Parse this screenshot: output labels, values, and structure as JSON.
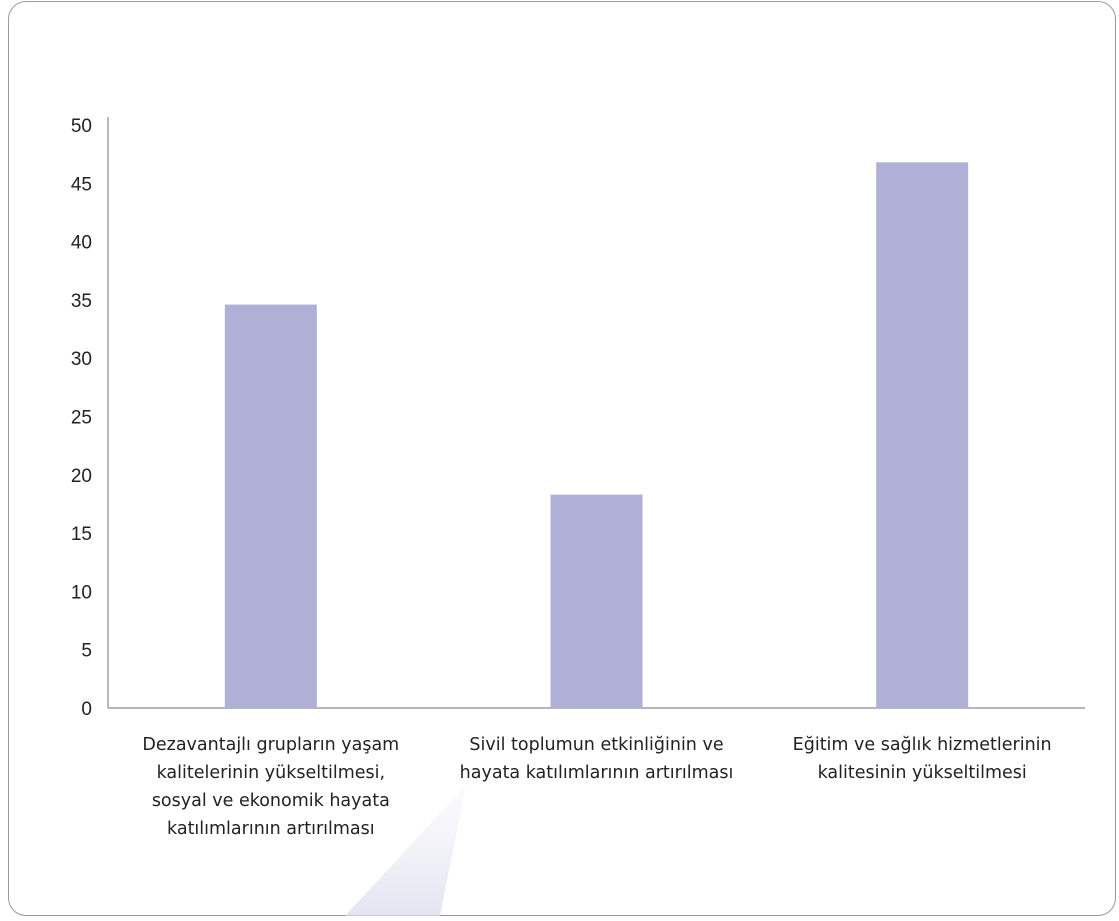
{
  "chart_data": {
    "type": "bar",
    "title": "",
    "xlabel": "",
    "ylabel": "",
    "ylim": [
      0,
      50
    ],
    "yticks": [
      0,
      5,
      10,
      15,
      20,
      25,
      30,
      35,
      40,
      45,
      50
    ],
    "grid": false,
    "legend": "none",
    "bar_color": "#b0b0d6",
    "categories": [
      [
        "Dezavantajlı grupların yaşam",
        "kalitelerinin yükseltilmesi,",
        "sosyal ve ekonomik hayata",
        "katılımlarının artırılması"
      ],
      [
        "Sivil toplumun etkinliğinin ve",
        "hayata katılımlarının artırılması"
      ],
      [
        "Eğitim ve sağlık hizmetlerinin",
        "kalitesinin yükseltilmesi"
      ]
    ],
    "values": [
      34.6,
      18.3,
      46.8
    ]
  }
}
